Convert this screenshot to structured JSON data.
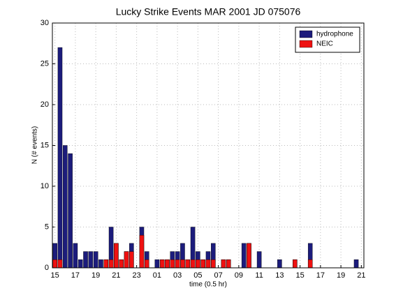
{
  "chart_data": {
    "type": "bar",
    "title": "Lucky Strike Events MAR 2001 JD 075076",
    "xlabel": "time (0.5 hr)",
    "ylabel": "N (# events)",
    "categories": [
      "15",
      null,
      null,
      null,
      "17",
      null,
      null,
      null,
      "19",
      null,
      null,
      null,
      "21",
      null,
      null,
      null,
      "23",
      null,
      null,
      null,
      "01",
      null,
      null,
      null,
      "03",
      null,
      null,
      null,
      "05",
      null,
      null,
      null,
      "07",
      null,
      null,
      null,
      "09",
      null,
      null,
      null,
      "11",
      null,
      null,
      null,
      "13",
      null,
      null,
      null,
      "15",
      null,
      null,
      null,
      "17",
      null,
      null,
      null,
      "19",
      null,
      null,
      null,
      "21"
    ],
    "series": [
      {
        "name": "hydrophone",
        "color": "#1c1c7c",
        "values": [
          3,
          27,
          15,
          14,
          3,
          1,
          2,
          2,
          2,
          1,
          1,
          5,
          3,
          1,
          2,
          3,
          0,
          5,
          2,
          0,
          1,
          1,
          1,
          2,
          2,
          3,
          1,
          5,
          2,
          1,
          2,
          3,
          0,
          1,
          1,
          0,
          0,
          3,
          3,
          0,
          2,
          0,
          0,
          0,
          1,
          0,
          0,
          1,
          0,
          0,
          3,
          0,
          0,
          0,
          0,
          0,
          0,
          0,
          0,
          1,
          0
        ]
      },
      {
        "name": "NEIC",
        "color": "#ee1111",
        "values": [
          1,
          1,
          0,
          0,
          0,
          0,
          0,
          0,
          0,
          0,
          1,
          1,
          3,
          1,
          2,
          2,
          0,
          4,
          1,
          0,
          0,
          1,
          1,
          1,
          1,
          1,
          1,
          1,
          1,
          1,
          1,
          1,
          0,
          1,
          1,
          0,
          0,
          0,
          3,
          0,
          0,
          0,
          0,
          0,
          0,
          0,
          0,
          1,
          0,
          0,
          1,
          0,
          0,
          0,
          0,
          0,
          0,
          0,
          0,
          0,
          0
        ]
      }
    ],
    "ylim": [
      0,
      30
    ],
    "yticks": [
      0,
      5,
      10,
      15,
      20,
      25,
      30
    ],
    "grid": true,
    "legend": "northeast"
  }
}
